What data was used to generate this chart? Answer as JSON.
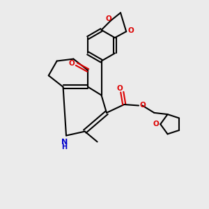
{
  "background_color": "#ebebeb",
  "bond_color": "#000000",
  "N_color": "#0000cc",
  "O_color": "#dd0000",
  "figsize": [
    3.0,
    3.0
  ],
  "dpi": 100,
  "lw": 1.5,
  "fs": 7.5,
  "xlim": [
    0,
    10
  ],
  "ylim": [
    0,
    10
  ]
}
